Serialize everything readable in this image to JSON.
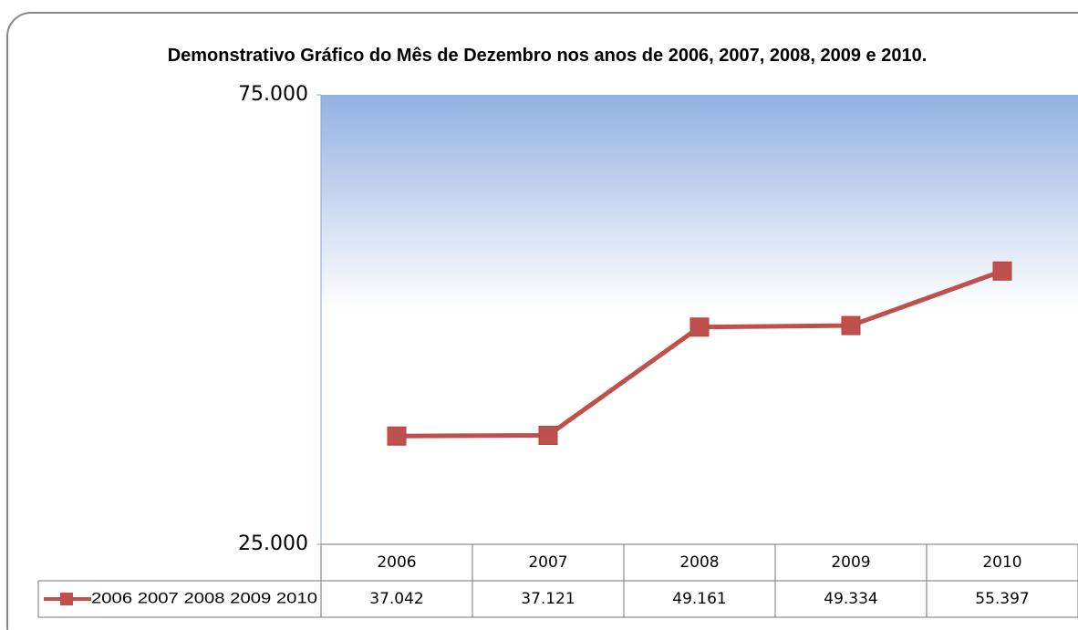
{
  "chart_data": {
    "type": "line",
    "title": "Demonstrativo Gráfico do Mês de Dezembro nos anos de 2006, 2007, 2008, 2009 e 2010.",
    "categories": [
      "2006",
      "2007",
      "2008",
      "2009",
      "2010"
    ],
    "series": [
      {
        "name": "2006 2007 2008 2009 2010",
        "color": "#c0504d",
        "values": [
          37042,
          37121,
          49161,
          49334,
          55397
        ],
        "value_labels": [
          "37.042",
          "37.121",
          "49.161",
          "49.334",
          "55.397"
        ]
      }
    ],
    "ylim": [
      25000,
      75000
    ],
    "yticks": [
      {
        "value": 25000,
        "label": "25.000"
      },
      {
        "value": 75000,
        "label": "75.000"
      }
    ],
    "grid": false
  }
}
